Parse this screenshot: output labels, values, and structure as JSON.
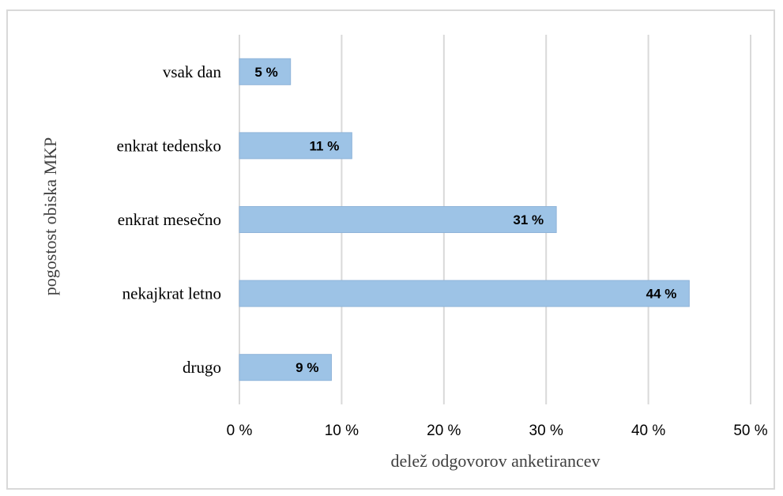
{
  "chart_data": {
    "type": "bar",
    "orientation": "horizontal",
    "categories": [
      "vsak dan",
      "enkrat tedensko",
      "enkrat mesečno",
      "nekajkrat letno",
      "drugo"
    ],
    "values": [
      5,
      11,
      31,
      44,
      9
    ],
    "data_labels": [
      "5 %",
      "11 %",
      "31 %",
      "44 %",
      "9 %"
    ],
    "xlabel": "delež odgovorov anketirancev",
    "ylabel": "pogostost obiska MKP",
    "xlim": [
      0,
      50
    ],
    "xticks": [
      0,
      10,
      20,
      30,
      40,
      50
    ],
    "xtick_labels": [
      "0 %",
      "10 %",
      "20 %",
      "30 %",
      "40 %",
      "50 %"
    ],
    "grid": true,
    "legend": "none",
    "bar_color": "#9dc3e6",
    "bar_edge_color": "#8fb4d9",
    "grid_color": "#d9d9d9"
  }
}
